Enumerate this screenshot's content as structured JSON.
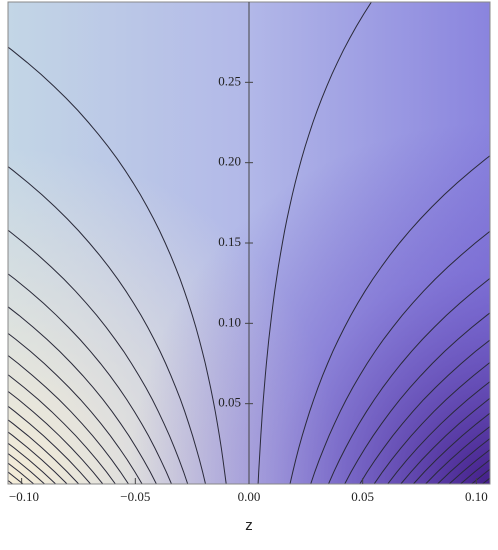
{
  "chart_data": {
    "type": "contour",
    "xlabel": "z",
    "xlim": [
      -0.106,
      0.106
    ],
    "ylim": [
      0,
      0.3
    ],
    "xticks": [
      {
        "value": -0.1,
        "label": "−0.10"
      },
      {
        "value": -0.05,
        "label": "−0.05"
      },
      {
        "value": 0,
        "label": "0.00"
      },
      0.05,
      {
        "value": 0.1,
        "label": "0.10"
      }
    ],
    "yticks": [
      0.05,
      {
        "value": 0.1,
        "label": "0.10"
      },
      0.15,
      {
        "value": 0.2,
        "label": "0.20"
      },
      0.25
    ]
  }
}
